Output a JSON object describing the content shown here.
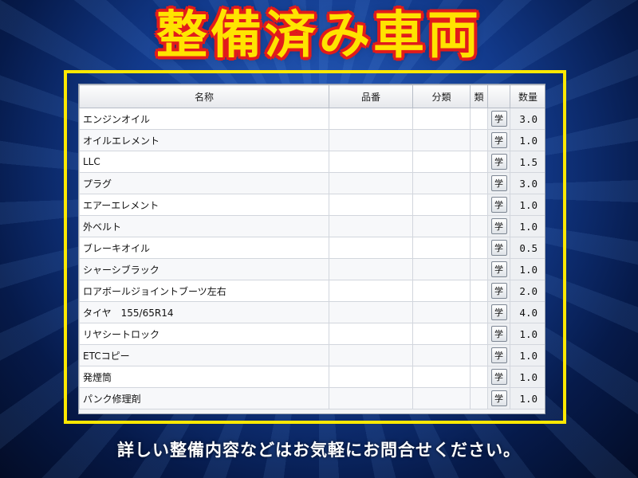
{
  "heading": "整備済み車両",
  "footer": "詳しい整備内容などはお気軽にお問合せください。",
  "colors": {
    "heading_fill": "#ffe400",
    "heading_outline": "#e21b1b",
    "frame": "#ffe800"
  },
  "table": {
    "headers": {
      "name": "名称",
      "part_no": "品番",
      "category": "分類",
      "kind": "類",
      "button": "",
      "quantity": "数量"
    },
    "button_label": "学",
    "rows": [
      {
        "name": "エンジンオイル",
        "part_no": "",
        "category": "",
        "kind": "",
        "quantity": "3.0"
      },
      {
        "name": "オイルエレメント",
        "part_no": "",
        "category": "",
        "kind": "",
        "quantity": "1.0"
      },
      {
        "name": "LLC",
        "part_no": "",
        "category": "",
        "kind": "",
        "quantity": "1.5"
      },
      {
        "name": "プラグ",
        "part_no": "",
        "category": "",
        "kind": "",
        "quantity": "3.0"
      },
      {
        "name": "エアーエレメント",
        "part_no": "",
        "category": "",
        "kind": "",
        "quantity": "1.0"
      },
      {
        "name": "外ベルト",
        "part_no": "",
        "category": "",
        "kind": "",
        "quantity": "1.0"
      },
      {
        "name": "ブレーキオイル",
        "part_no": "",
        "category": "",
        "kind": "",
        "quantity": "0.5"
      },
      {
        "name": "シャーシブラック",
        "part_no": "",
        "category": "",
        "kind": "",
        "quantity": "1.0"
      },
      {
        "name": "ロアボールジョイントブーツ左右",
        "part_no": "",
        "category": "",
        "kind": "",
        "quantity": "2.0"
      },
      {
        "name": "タイヤ　155/65R14",
        "part_no": "",
        "category": "",
        "kind": "",
        "quantity": "4.0"
      },
      {
        "name": "リヤシートロック",
        "part_no": "",
        "category": "",
        "kind": "",
        "quantity": "1.0"
      },
      {
        "name": "ETCコピー",
        "part_no": "",
        "category": "",
        "kind": "",
        "quantity": "1.0"
      },
      {
        "name": "発煙筒",
        "part_no": "",
        "category": "",
        "kind": "",
        "quantity": "1.0"
      },
      {
        "name": "パンク修理剤",
        "part_no": "",
        "category": "",
        "kind": "",
        "quantity": "1.0"
      }
    ]
  }
}
